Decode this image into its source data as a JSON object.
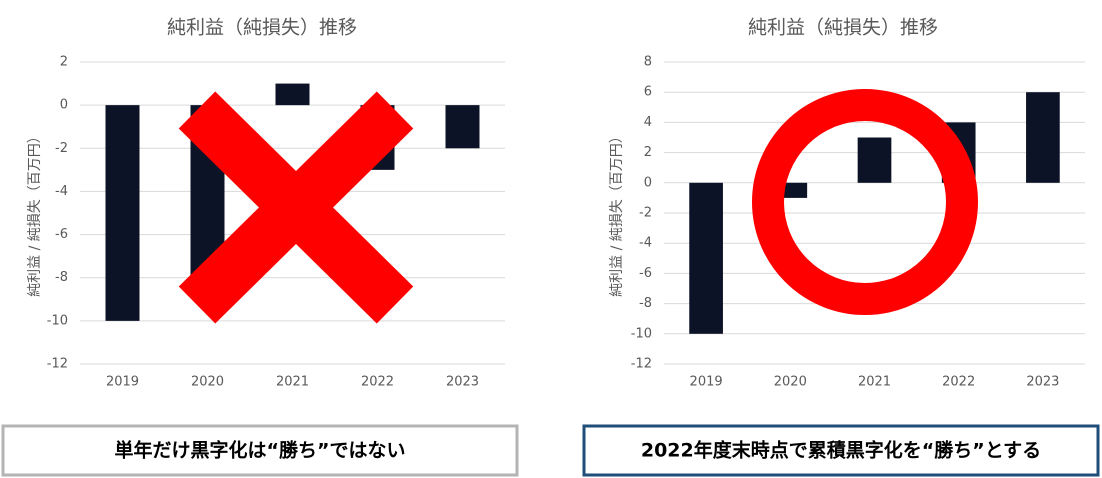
{
  "chart_data": [
    {
      "type": "bar",
      "title": "純利益（純損失）推移",
      "y_label": "純利益 / 純損失（百万円）",
      "categories": [
        "2019",
        "2020",
        "2021",
        "2022",
        "2023"
      ],
      "values": [
        -10,
        -8,
        1,
        -3,
        -2
      ],
      "color": "#0c1326",
      "ylim": [
        -12,
        2
      ],
      "yticks": [
        -12,
        -10,
        -8,
        -6,
        -4,
        -2,
        0,
        2
      ],
      "grid": true,
      "caption": "単年だけ黒字化は“勝ち”ではない"
    },
    {
      "type": "bar",
      "title": "純利益（純損失）推移",
      "y_label": "純利益 / 純損失（百万円）",
      "categories": [
        "2019",
        "2020",
        "2021",
        "2022",
        "2023"
      ],
      "values": [
        -10,
        -1,
        3,
        4,
        6
      ],
      "color": "#0c1326",
      "ylim": [
        -12,
        8
      ],
      "yticks": [
        -12,
        -10,
        -8,
        -6,
        -4,
        -2,
        0,
        2,
        4,
        6,
        8
      ],
      "grid": true,
      "caption": "2022年度末時点で累積黒字化を“勝ち”とする"
    }
  ]
}
